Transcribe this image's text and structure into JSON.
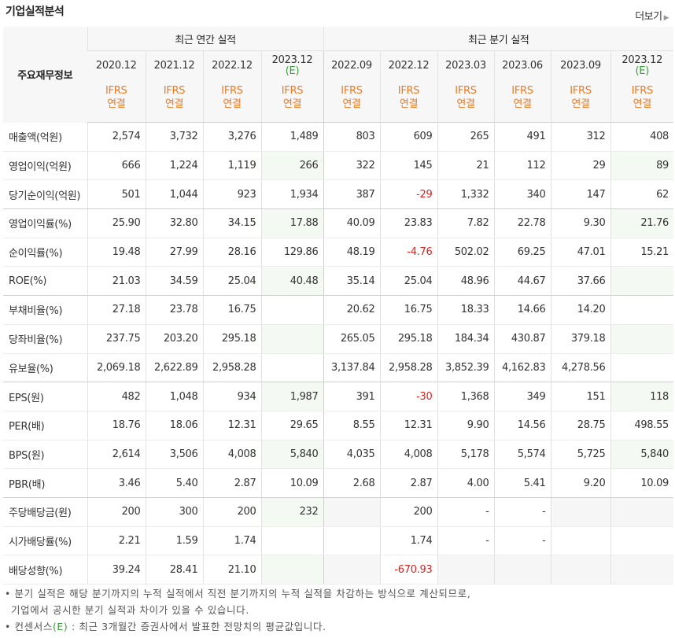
{
  "title": "기업실적분석",
  "more_label": "더보기",
  "header": {
    "main_label": "주요재무정보",
    "annual_group": "최근 연간 실적",
    "quarter_group": "최근 분기 실적",
    "ifrs_line1": "IFRS",
    "ifrs_line2": "연결",
    "est_mark": "(E)",
    "annual_dates": [
      "2020.12",
      "2021.12",
      "2022.12",
      "2023.12"
    ],
    "quarter_dates": [
      "2022.09",
      "2022.12",
      "2023.03",
      "2023.06",
      "2023.09",
      "2023.12"
    ]
  },
  "rows": [
    {
      "label": "매출액(억원)",
      "values": [
        "2,574",
        "3,732",
        "3,276",
        "1,489",
        "803",
        "609",
        "265",
        "491",
        "312",
        "408"
      ]
    },
    {
      "label": "영업이익(억원)",
      "values": [
        "666",
        "1,224",
        "1,119",
        "266",
        "322",
        "145",
        "21",
        "112",
        "29",
        "89"
      ]
    },
    {
      "label": "당기순이익(억원)",
      "values": [
        "501",
        "1,044",
        "923",
        "1,934",
        "387",
        "-29",
        "1,332",
        "340",
        "147",
        "62"
      ]
    },
    {
      "label": "영업이익률(%)",
      "values": [
        "25.90",
        "32.80",
        "34.15",
        "17.88",
        "40.09",
        "23.83",
        "7.82",
        "22.78",
        "9.30",
        "21.76"
      ]
    },
    {
      "label": "순이익률(%)",
      "values": [
        "19.48",
        "27.99",
        "28.16",
        "129.86",
        "48.19",
        "-4.76",
        "502.02",
        "69.25",
        "47.01",
        "15.21"
      ]
    },
    {
      "label": "ROE(%)",
      "values": [
        "21.03",
        "34.59",
        "25.04",
        "40.48",
        "35.14",
        "25.04",
        "48.96",
        "44.67",
        "37.66",
        ""
      ]
    },
    {
      "label": "부채비율(%)",
      "values": [
        "27.18",
        "23.78",
        "16.75",
        "",
        "20.62",
        "16.75",
        "18.33",
        "14.66",
        "14.20",
        ""
      ]
    },
    {
      "label": "당좌비율(%)",
      "values": [
        "237.75",
        "203.20",
        "295.18",
        "",
        "265.05",
        "295.18",
        "184.34",
        "430.87",
        "379.18",
        ""
      ]
    },
    {
      "label": "유보율(%)",
      "values": [
        "2,069.18",
        "2,622.89",
        "2,958.28",
        "",
        "3,137.84",
        "2,958.28",
        "3,852.39",
        "4,162.83",
        "4,278.56",
        ""
      ]
    },
    {
      "label": "EPS(원)",
      "values": [
        "482",
        "1,048",
        "934",
        "1,987",
        "391",
        "-30",
        "1,368",
        "349",
        "151",
        "118"
      ]
    },
    {
      "label": "PER(배)",
      "values": [
        "18.76",
        "18.06",
        "12.31",
        "29.65",
        "8.55",
        "12.31",
        "9.90",
        "14.56",
        "28.75",
        "498.55"
      ]
    },
    {
      "label": "BPS(원)",
      "values": [
        "2,614",
        "3,506",
        "4,008",
        "5,840",
        "4,035",
        "4,008",
        "5,178",
        "5,574",
        "5,725",
        "5,840"
      ]
    },
    {
      "label": "PBR(배)",
      "values": [
        "3.46",
        "5.40",
        "2.87",
        "10.09",
        "2.68",
        "2.87",
        "4.00",
        "5.41",
        "9.20",
        "10.09"
      ]
    },
    {
      "label": "주당배당금(원)",
      "values": [
        "200",
        "300",
        "200",
        "232",
        "",
        "200",
        "-",
        "-",
        "",
        ""
      ]
    },
    {
      "label": "시가배당률(%)",
      "values": [
        "2.21",
        "1.59",
        "1.74",
        "",
        "",
        "1.74",
        "-",
        "-",
        "",
        ""
      ]
    },
    {
      "label": "배당성향(%)",
      "values": [
        "39.24",
        "28.41",
        "21.10",
        "",
        "",
        "-670.93",
        "",
        "",
        "",
        ""
      ]
    }
  ],
  "notes": {
    "line1": "분기 실적은 해당 분기까지의 누적 실적에서 직전 분기까지의 누적 실적을 차감하는 방식으로 계산되므로,",
    "line2": "기업에서 공시한 분기 실적과 차이가 있을 수 있습니다.",
    "line3_prefix": "컨센서스",
    "line3_mark": "(E)",
    "line3_suffix": " : 최근 3개월간 증권사에서 발표한 전망치의 평균값입니다."
  }
}
